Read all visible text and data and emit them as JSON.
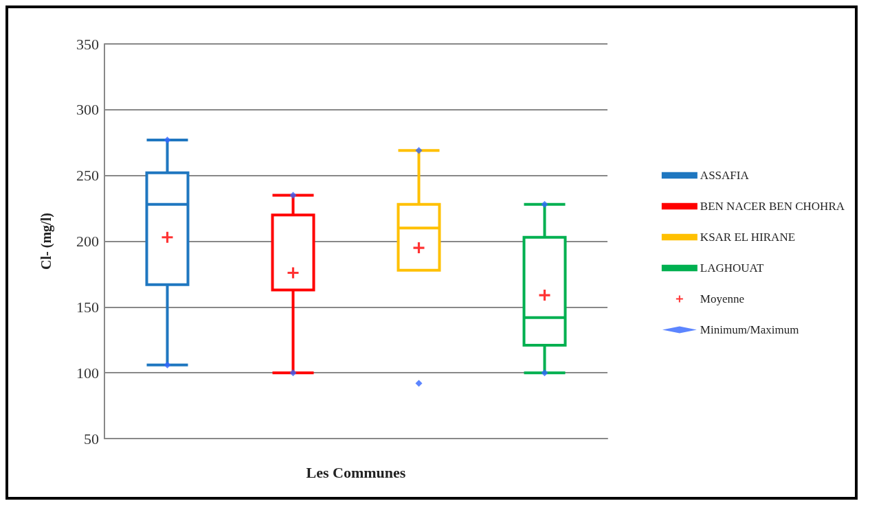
{
  "chart_data": {
    "type": "box",
    "xlabel": "Les Communes",
    "ylabel": "Cl- (mg/l)",
    "categories": [
      null,
      null,
      null,
      null
    ],
    "ylim": [
      50,
      350
    ],
    "yticks": [
      50,
      100,
      150,
      200,
      250,
      300,
      350
    ],
    "grid": "y",
    "legend": "right",
    "series": [
      {
        "name": "ASSAFIA",
        "color": "#1f77c0",
        "boxes": [
          {
            "low": 106,
            "q1": 167,
            "median": 228,
            "q3": 252,
            "high": 277
          },
          null,
          null,
          null
        ]
      },
      {
        "name": "BEN NACER BEN CHOHRA",
        "color": "#ff0000",
        "boxes": [
          null,
          {
            "low": 100,
            "q1": 163,
            "median": 163,
            "q3": 220,
            "high": 235
          },
          null,
          null
        ]
      },
      {
        "name": "KSAR EL HIRANE",
        "color": "#ffc000",
        "boxes": [
          null,
          null,
          {
            "low": 178,
            "q1": 178,
            "median": 210,
            "q3": 228,
            "high": 269
          },
          null
        ]
      },
      {
        "name": "LAGHOUAT",
        "color": "#00b050",
        "boxes": [
          null,
          null,
          null,
          {
            "low": 100,
            "q1": 121,
            "median": 142,
            "q3": 203,
            "high": 228
          }
        ]
      },
      {
        "name": "Moyenne",
        "type": "scatter",
        "color": "#ff0000",
        "marker": "cross",
        "values": [
          203,
          176,
          195,
          159
        ]
      },
      {
        "name": "Minimum/Maximum",
        "type": "scatter",
        "color": "#3366ff",
        "marker": "diamond",
        "values": [
          277,
          235,
          269,
          228
        ]
      },
      {
        "type": "scatter",
        "color": "#3366ff",
        "marker": "diamond",
        "values": [
          106,
          100,
          92,
          100
        ]
      }
    ]
  }
}
